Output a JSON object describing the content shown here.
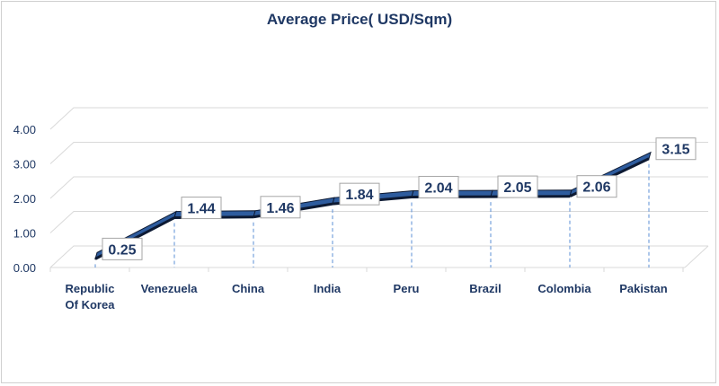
{
  "chart_data": {
    "type": "line",
    "title": "Average Price( USD/Sqm)",
    "categories": [
      "Republic Of Korea",
      "Venezuela",
      "China",
      "India",
      "Peru",
      "Brazil",
      "Colombia",
      "Pakistan"
    ],
    "category_lines": [
      [
        "Republic",
        "Of Korea"
      ],
      [
        "Venezuela"
      ],
      [
        "China"
      ],
      [
        "India"
      ],
      [
        "Peru"
      ],
      [
        "Brazil"
      ],
      [
        "Colombia"
      ],
      [
        "Pakistan"
      ]
    ],
    "values": [
      0.25,
      1.44,
      1.46,
      1.84,
      2.04,
      2.05,
      2.06,
      3.15
    ],
    "data_labels": [
      "0.25",
      "1.44",
      "1.46",
      "1.84",
      "2.04",
      "2.05",
      "2.06",
      "3.15"
    ],
    "y_ticks": [
      "0.00",
      "1.00",
      "2.00",
      "3.00",
      "4.00"
    ],
    "ylim": [
      0,
      4
    ],
    "grid": true,
    "style": "3d-line",
    "colors": {
      "line_front": "#2e5c9e",
      "line_dark": "#0d1a33",
      "text": "#1f3864",
      "grid": "#d9d9d9",
      "leader": "#5b8fd6",
      "label_border": "#a6a6a6"
    }
  }
}
